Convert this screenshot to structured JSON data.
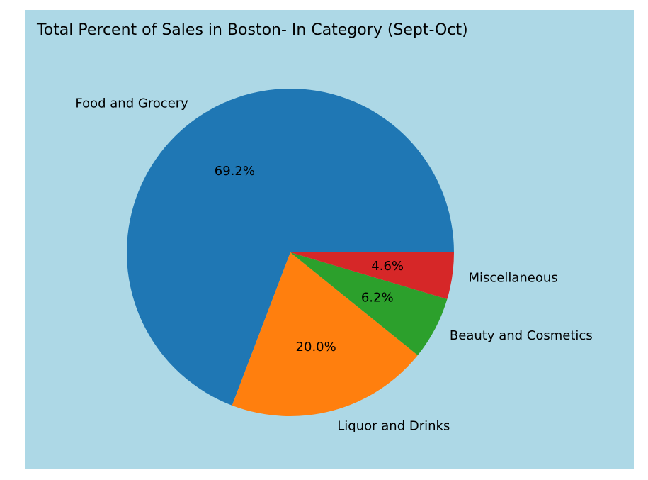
{
  "colors": {
    "figure_background": "#ffffff",
    "plot_background": "#add8e6"
  },
  "chart_data": {
    "type": "pie",
    "title": "Total Percent of Sales in Boston- In Category (Sept-Oct)",
    "start_angle_deg": 0,
    "direction": "counterclockwise",
    "slices": [
      {
        "label": "Food and Grocery",
        "value": 69.2,
        "pct_text": "69.2%",
        "color": "#1f77b4"
      },
      {
        "label": "Liquor and Drinks",
        "value": 20.0,
        "pct_text": "20.0%",
        "color": "#ff7f0e"
      },
      {
        "label": "Beauty and Cosmetics",
        "value": 6.2,
        "pct_text": "6.2%",
        "color": "#2ca02c"
      },
      {
        "label": "Miscellaneous",
        "value": 4.6,
        "pct_text": "4.6%",
        "color": "#d62728"
      }
    ]
  }
}
